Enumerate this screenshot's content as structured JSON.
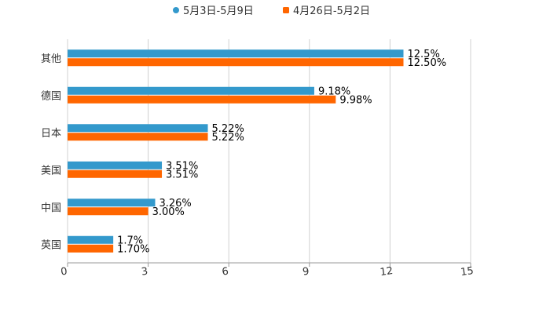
{
  "chart_data": {
    "type": "bar",
    "orientation": "horizontal",
    "categories": [
      "其他",
      "德国",
      "日本",
      "美国",
      "中国",
      "英国"
    ],
    "series": [
      {
        "name": "5月3日-5月9日",
        "color": "#3399cc",
        "values": [
          12.5,
          9.18,
          5.22,
          3.51,
          3.26,
          1.7
        ],
        "labels": [
          "12.5%",
          "9.18%",
          "5.22%",
          "3.51%",
          "3.26%",
          "1.7%"
        ]
      },
      {
        "name": "4月26日-5月2日",
        "color": "#ff6600",
        "values": [
          12.5,
          9.98,
          5.22,
          3.51,
          3.0,
          1.7
        ],
        "labels": [
          "12.50%",
          "9.98%",
          "5.22%",
          "3.51%",
          "3.00%",
          "1.70%"
        ]
      }
    ],
    "xticks": [
      "0",
      "3",
      "6",
      "9",
      "12",
      "15"
    ],
    "xlim": [
      0,
      15
    ],
    "grid": true,
    "legend": "top-center",
    "title": "",
    "xlabel": "",
    "ylabel": ""
  }
}
